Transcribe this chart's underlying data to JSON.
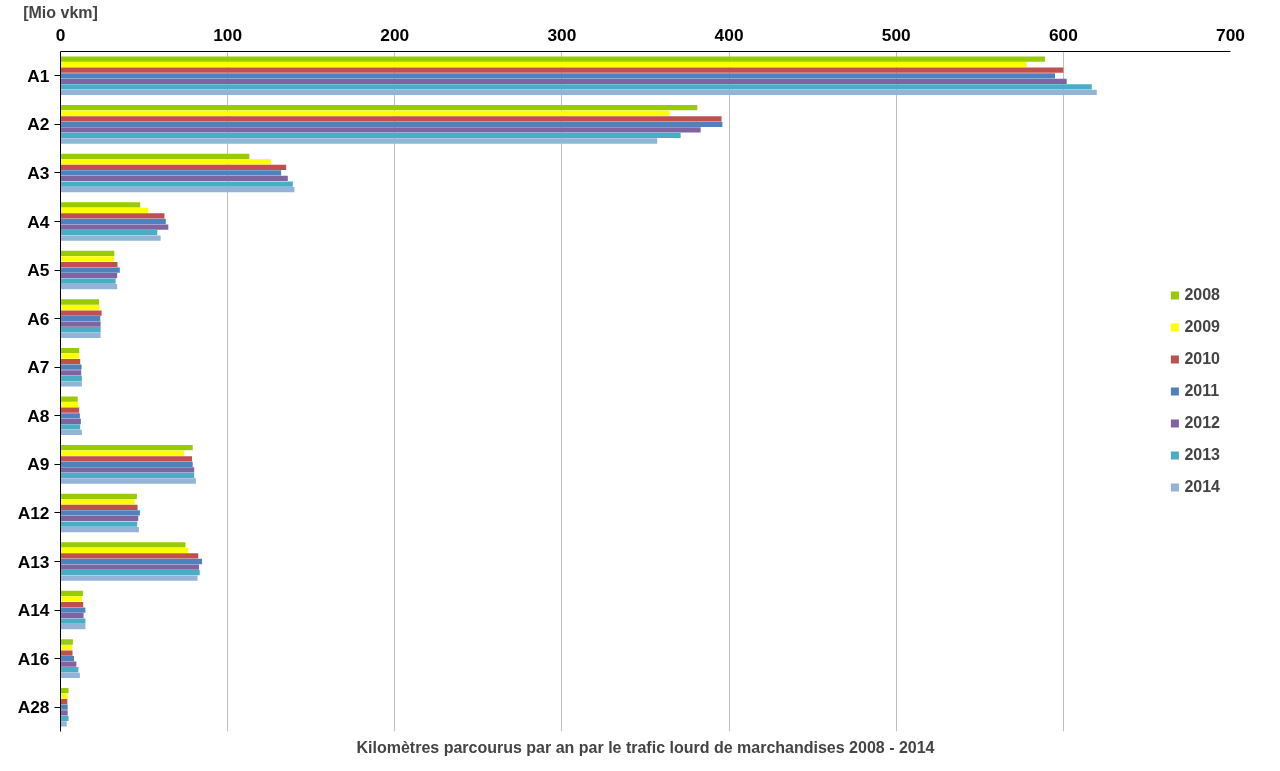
{
  "chart_data": {
    "type": "bar",
    "orientation": "horizontal",
    "title": "Kilomètres parcourus par an par le trafic lourd de marchandises 2008 - 2014",
    "xlabel": "[Mio vkm]",
    "categories": [
      "A1",
      "A2",
      "A3",
      "A4",
      "A5",
      "A6",
      "A7",
      "A8",
      "A9",
      "A12",
      "A13",
      "A14",
      "A16",
      "A28"
    ],
    "series": [
      {
        "name": "2008",
        "color": "#99cc00",
        "values": [
          589,
          381,
          113,
          47.7,
          32.2,
          23.1,
          11.2,
          10.3,
          79.1,
          45.7,
          74.8,
          13.4,
          7.4,
          4.8
        ]
      },
      {
        "name": "2009",
        "color": "#ffff00",
        "values": [
          578,
          364.5,
          126,
          52.5,
          32,
          23.3,
          11,
          10.5,
          74,
          44.4,
          76.4,
          12.8,
          7,
          4.3
        ]
      },
      {
        "name": "2010",
        "color": "#c0504d",
        "values": [
          600,
          395.5,
          135,
          62.2,
          34.1,
          24.6,
          11.8,
          11.2,
          78.7,
          46.1,
          82.4,
          13.6,
          7.2,
          4.1
        ]
      },
      {
        "name": "2011",
        "color": "#4f81bd",
        "values": [
          595,
          396,
          132,
          63,
          35.5,
          23.8,
          12.6,
          11.6,
          79.1,
          47.5,
          84.7,
          14.9,
          8.1,
          4.3
        ]
      },
      {
        "name": "2012",
        "color": "#8064a2",
        "values": [
          602,
          383,
          136,
          64.5,
          33.9,
          24,
          12.4,
          12.2,
          80,
          46.5,
          82.9,
          13.8,
          9.5,
          4.3
        ]
      },
      {
        "name": "2013",
        "color": "#4bacc6",
        "values": [
          617,
          371,
          139,
          57.9,
          33,
          24,
          12.8,
          11.8,
          80,
          45.9,
          83.3,
          14.9,
          10.7,
          4.8
        ]
      },
      {
        "name": "2014",
        "color": "#95b3d7",
        "values": [
          620,
          357,
          140,
          59.9,
          33.9,
          24,
          12.8,
          12.8,
          81,
          46.9,
          82,
          14.9,
          11.6,
          3.7
        ]
      }
    ],
    "xlim": [
      0,
      700
    ],
    "xticks": [
      0,
      100,
      200,
      300,
      400,
      500,
      600,
      700
    ],
    "grid": "x",
    "legend": "right"
  }
}
